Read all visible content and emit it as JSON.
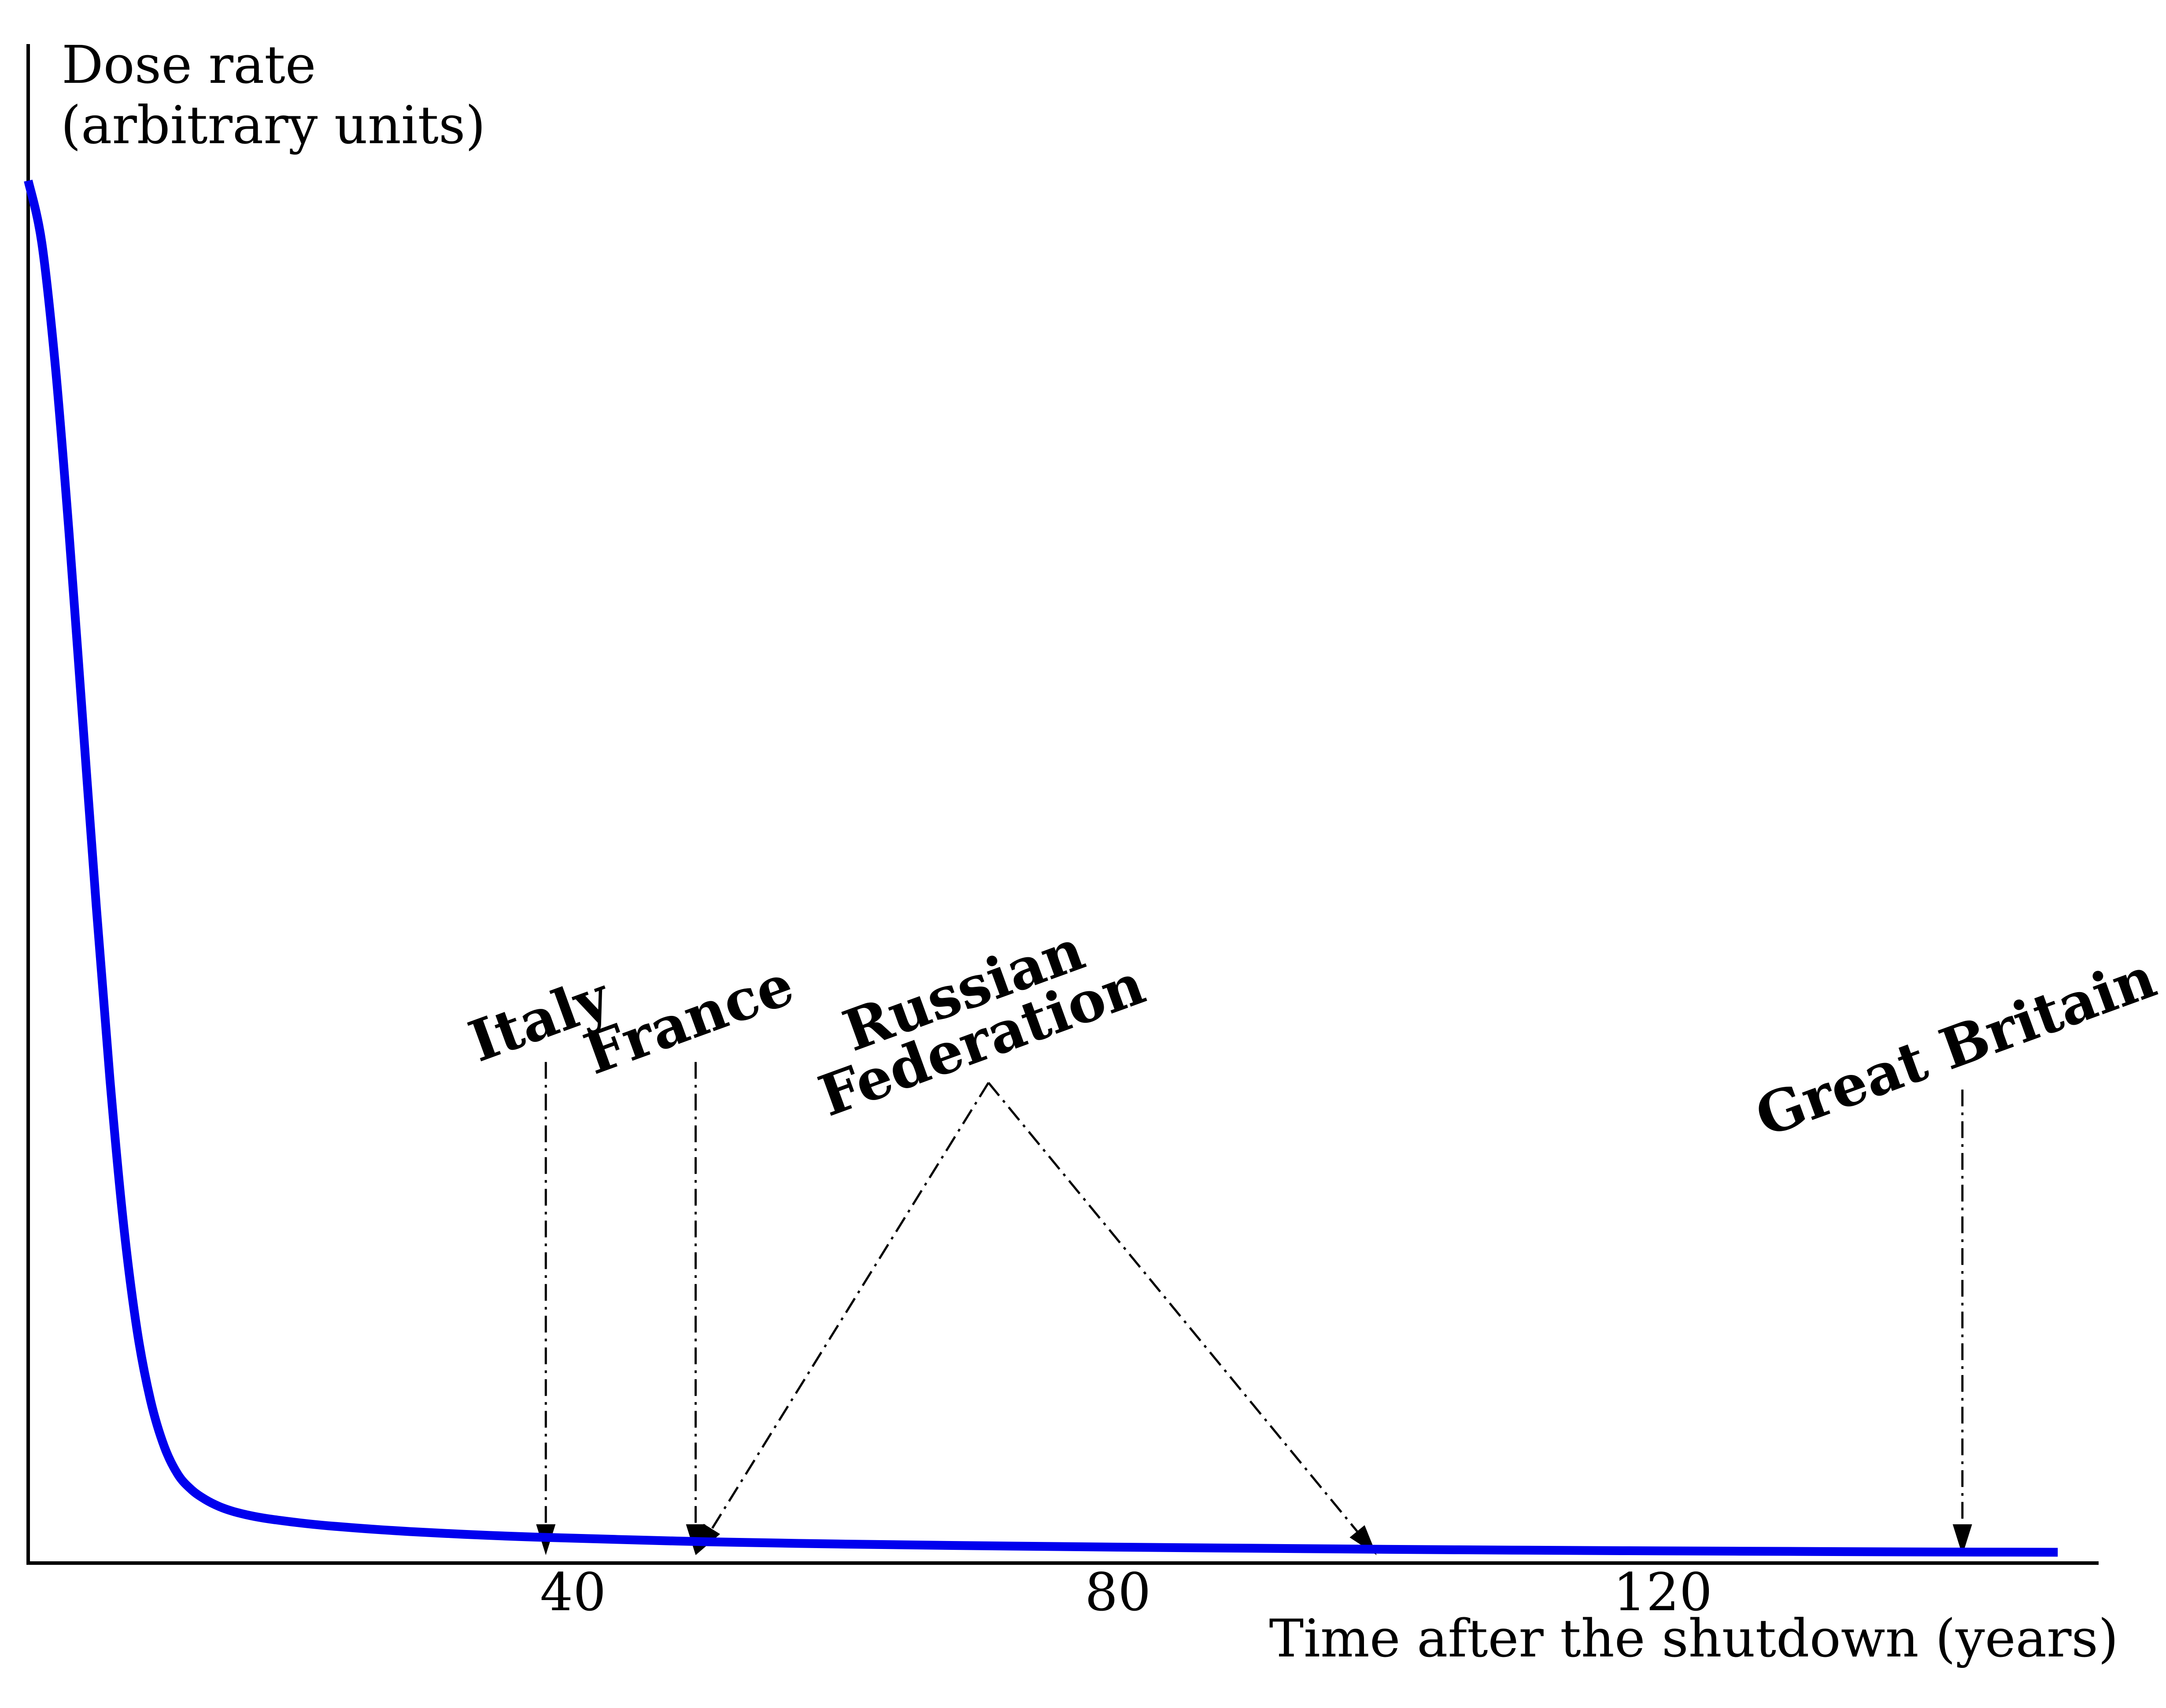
{
  "chart_data": {
    "type": "line",
    "title": "",
    "ylabel_line1": "Dose rate",
    "ylabel_line2": "(arbitrary units)",
    "xlabel": "Time after the shutdown (years)",
    "xlim": [
      0,
      152
    ],
    "ylim": [
      0,
      100
    ],
    "xticks": [
      40,
      80,
      120
    ],
    "xtick_labels": [
      "40",
      "80",
      "120"
    ],
    "yticks_shown": false,
    "grid": false,
    "legend": "none",
    "series": [
      {
        "color": "#0000ee",
        "x": [
          0,
          1,
          2,
          3,
          4,
          5,
          6,
          7,
          8,
          9,
          10,
          11,
          12,
          13,
          14,
          15,
          16,
          17,
          18,
          20,
          22,
          25,
          28,
          32,
          36,
          40,
          45,
          50,
          55,
          60,
          70,
          80,
          90,
          100,
          110,
          120,
          130,
          140,
          149
        ],
        "y": [
          100,
          95.5,
          86.5,
          74.5,
          61,
          47.5,
          35,
          24.5,
          16.8,
          11.7,
          8.4,
          6.4,
          5.3,
          4.6,
          4.1,
          3.75,
          3.5,
          3.3,
          3.15,
          2.9,
          2.7,
          2.47,
          2.28,
          2.08,
          1.92,
          1.8,
          1.66,
          1.54,
          1.45,
          1.37,
          1.25,
          1.15,
          1.07,
          0.99,
          0.93,
          0.88,
          0.84,
          0.8,
          0.78
        ]
      }
    ],
    "annotations": [
      {
        "lines": [
          "Italy"
        ],
        "label_x": 38,
        "label_y": 38,
        "targets_x": [
          38
        ]
      },
      {
        "lines": [
          "France"
        ],
        "label_x": 49,
        "label_y": 38,
        "targets_x": [
          49
        ]
      },
      {
        "lines": [
          "Russian",
          "Federation"
        ],
        "label_x": 70.5,
        "label_y": 36.5,
        "targets_x": [
          49,
          99
        ]
      },
      {
        "lines": [
          "Great Britain"
        ],
        "label_x": 142,
        "label_y": 36,
        "targets_x": [
          142
        ]
      }
    ]
  }
}
